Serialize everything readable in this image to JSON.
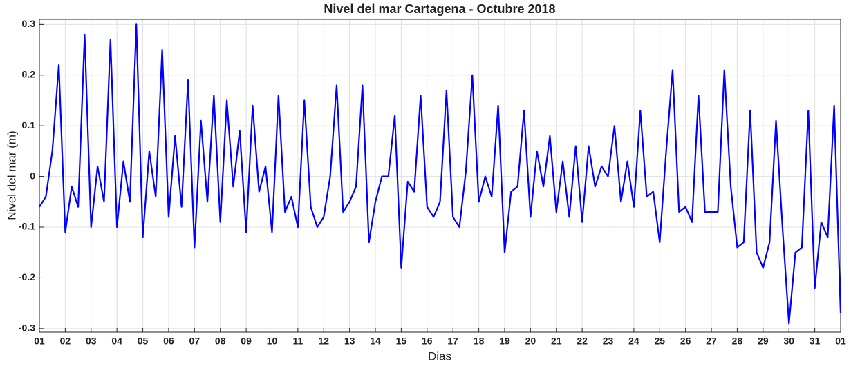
{
  "chart_data": {
    "type": "line",
    "title": "Nivel del mar Cartagena - Octubre 2018",
    "xlabel": "Dias",
    "ylabel": "Nivel del mar (m)",
    "xlim": [
      1,
      32
    ],
    "ylim": [
      -0.307,
      0.31
    ],
    "xticks": [
      {
        "value": 1,
        "label": "01"
      },
      {
        "value": 2,
        "label": "02"
      },
      {
        "value": 3,
        "label": "03"
      },
      {
        "value": 4,
        "label": "04"
      },
      {
        "value": 5,
        "label": "05"
      },
      {
        "value": 6,
        "label": "06"
      },
      {
        "value": 7,
        "label": "07"
      },
      {
        "value": 8,
        "label": "08"
      },
      {
        "value": 9,
        "label": "09"
      },
      10,
      11,
      12,
      13,
      14,
      15,
      16,
      17,
      18,
      19,
      20,
      21,
      22,
      23,
      24,
      25,
      26,
      27,
      28,
      29,
      30,
      31,
      {
        "value": 32,
        "label": "01"
      }
    ],
    "yticks": [
      -0.3,
      -0.2,
      -0.1,
      0,
      0.1,
      0.2,
      0.3
    ],
    "grid": true,
    "x": [
      1,
      1.25,
      1.5,
      1.75,
      2,
      2.25,
      2.5,
      2.75,
      3,
      3.25,
      3.5,
      3.75,
      4,
      4.25,
      4.5,
      4.75,
      5,
      5.25,
      5.5,
      5.75,
      6,
      6.25,
      6.5,
      6.75,
      7,
      7.25,
      7.5,
      7.75,
      8,
      8.25,
      8.5,
      8.75,
      9,
      9.25,
      9.5,
      9.75,
      10,
      10.25,
      10.5,
      10.75,
      11,
      11.25,
      11.5,
      11.75,
      12,
      12.25,
      12.5,
      12.75,
      13,
      13.25,
      13.5,
      13.75,
      14,
      14.25,
      14.5,
      14.75,
      15,
      15.25,
      15.5,
      15.75,
      16,
      16.25,
      16.5,
      16.75,
      17,
      17.25,
      17.5,
      17.75,
      18,
      18.25,
      18.5,
      18.75,
      19,
      19.25,
      19.5,
      19.75,
      20,
      20.25,
      20.5,
      20.75,
      21,
      21.25,
      21.5,
      21.75,
      22,
      22.25,
      22.5,
      22.75,
      23,
      23.25,
      23.5,
      23.75,
      24,
      24.25,
      24.5,
      24.75,
      25,
      25.25,
      25.5,
      25.75,
      26,
      26.25,
      26.5,
      26.75,
      27,
      27.25,
      27.5,
      27.75,
      28,
      28.25,
      28.5,
      28.75,
      29,
      29.25,
      29.5,
      29.75,
      30,
      30.25,
      30.5,
      30.75,
      31,
      31.25,
      31.5,
      31.75,
      32
    ],
    "series": [
      {
        "name": "Nivel",
        "color": "#0000ff",
        "values": [
          -0.06,
          -0.04,
          0.05,
          0.22,
          -0.11,
          -0.02,
          -0.06,
          0.28,
          -0.1,
          0.02,
          -0.05,
          0.27,
          -0.1,
          0.03,
          -0.05,
          0.3,
          -0.12,
          0.05,
          -0.04,
          0.25,
          -0.08,
          0.08,
          -0.06,
          0.19,
          -0.14,
          0.11,
          -0.05,
          0.16,
          -0.09,
          0.15,
          -0.02,
          0.09,
          -0.11,
          0.14,
          -0.03,
          0.02,
          -0.11,
          0.16,
          -0.07,
          -0.04,
          -0.1,
          0.15,
          -0.06,
          -0.1,
          -0.08,
          0.0,
          0.18,
          -0.07,
          -0.05,
          -0.02,
          0.18,
          -0.13,
          -0.05,
          0.0,
          0.0,
          0.12,
          -0.18,
          -0.01,
          -0.03,
          0.16,
          -0.06,
          -0.08,
          -0.05,
          0.17,
          -0.08,
          -0.1,
          0.01,
          0.2,
          -0.05,
          0.0,
          -0.04,
          0.14,
          -0.15,
          -0.03,
          -0.02,
          0.13,
          -0.08,
          0.05,
          -0.02,
          0.08,
          -0.07,
          0.03,
          -0.08,
          0.06,
          -0.09,
          0.06,
          -0.02,
          0.02,
          0.0,
          0.1,
          -0.05,
          0.03,
          -0.06,
          0.13,
          -0.04,
          -0.03,
          -0.13,
          0.05,
          0.21,
          -0.07,
          -0.06,
          -0.09,
          0.16,
          -0.07,
          -0.07,
          -0.07,
          0.21,
          -0.02,
          -0.14,
          -0.13,
          0.13,
          -0.15,
          -0.18,
          -0.13,
          0.11,
          -0.1,
          -0.29,
          -0.15,
          -0.14,
          0.13,
          -0.22,
          -0.09,
          -0.12,
          0.14,
          -0.27
        ]
      }
    ]
  }
}
